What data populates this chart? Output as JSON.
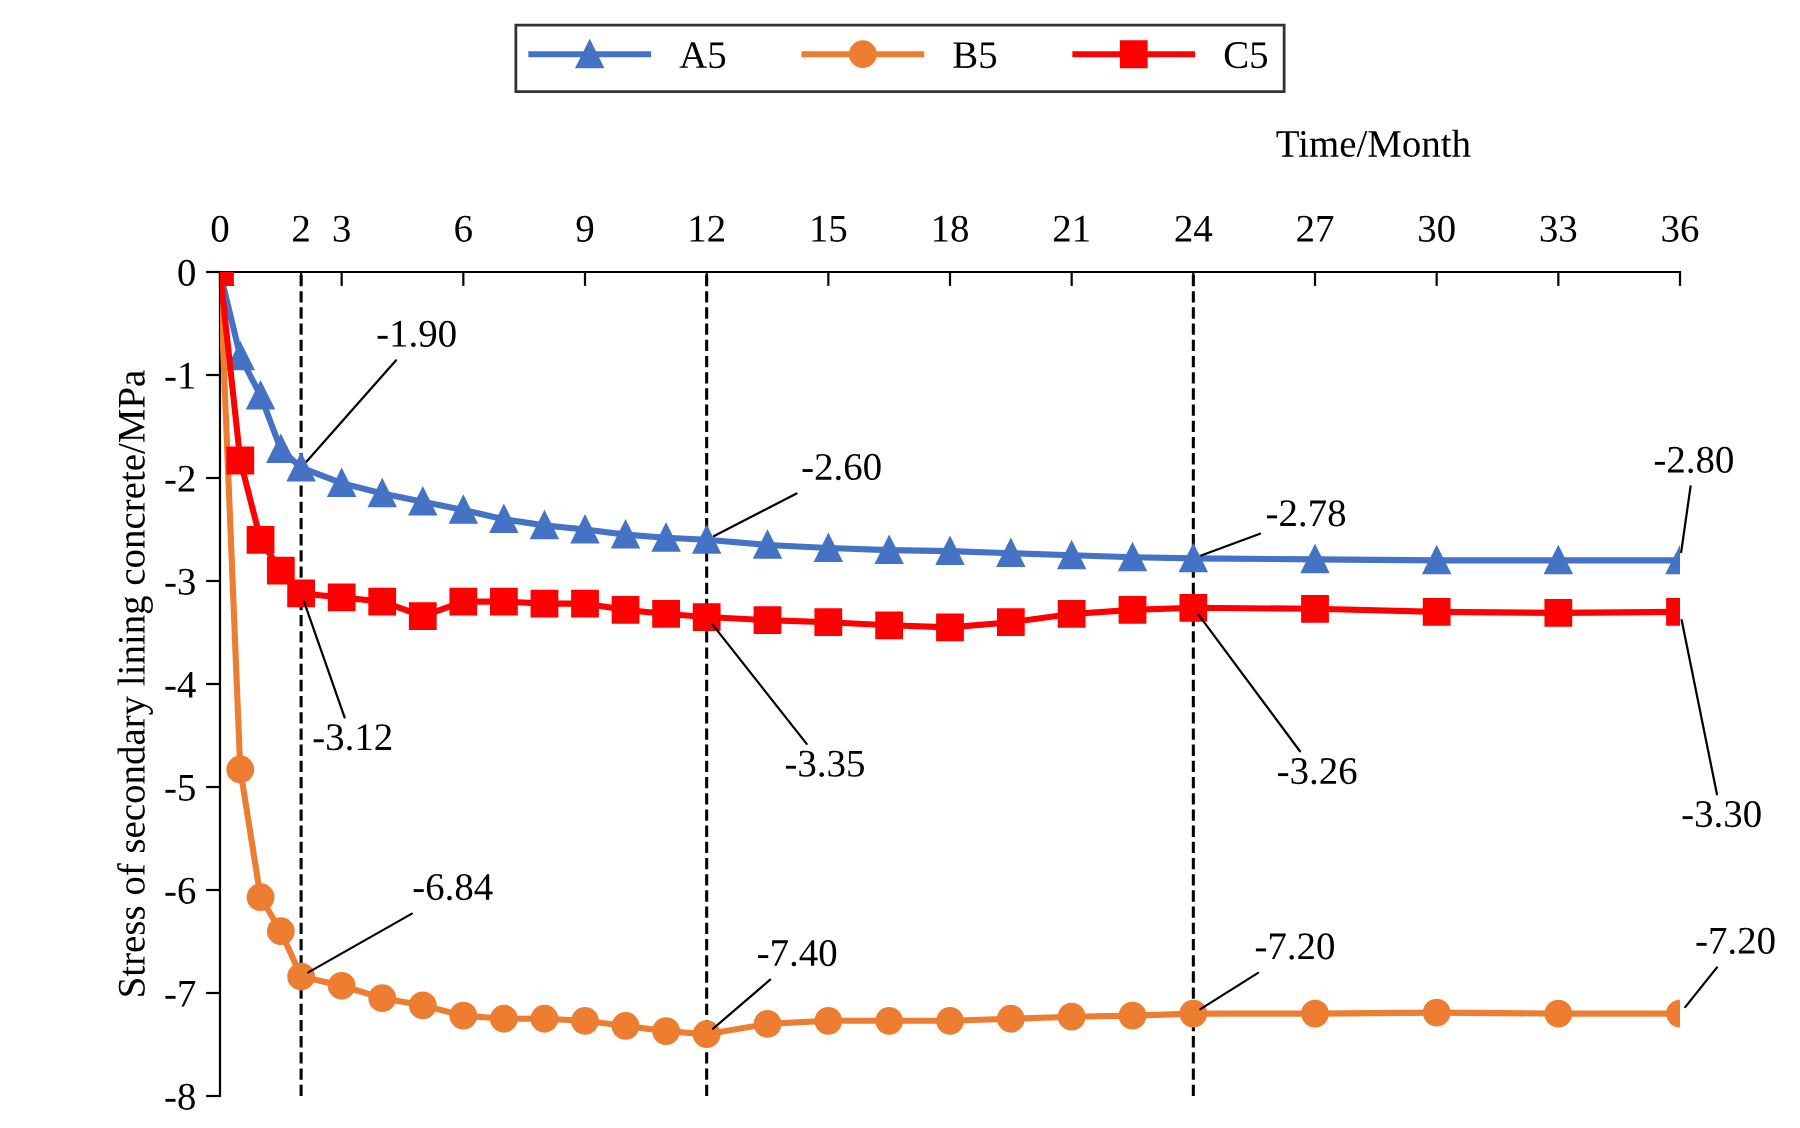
{
  "chart_data": {
    "type": "line",
    "xlabel": "Time/Month",
    "ylabel": "Stress of secondary lining concrete/MPa",
    "x": [
      0,
      0.5,
      1,
      1.5,
      2,
      3,
      4,
      5,
      6,
      7,
      8,
      9,
      10,
      11,
      12,
      13.5,
      15,
      16.5,
      18,
      19.5,
      21,
      22.5,
      24,
      27,
      30,
      33,
      36
    ],
    "series": [
      {
        "name": "A5",
        "color": "#4472c4",
        "marker": "triangle",
        "values": [
          0,
          -0.82,
          -1.2,
          -1.72,
          -1.9,
          -2.05,
          -2.15,
          -2.23,
          -2.31,
          -2.4,
          -2.46,
          -2.5,
          -2.55,
          -2.58,
          -2.6,
          -2.65,
          -2.68,
          -2.7,
          -2.71,
          -2.73,
          -2.75,
          -2.77,
          -2.78,
          -2.79,
          -2.8,
          -2.8,
          -2.8
        ]
      },
      {
        "name": "B5",
        "color": "#ed7d31",
        "marker": "circle",
        "values": [
          0,
          -4.83,
          -6.07,
          -6.4,
          -6.84,
          -6.93,
          -7.05,
          -7.12,
          -7.22,
          -7.25,
          -7.25,
          -7.27,
          -7.32,
          -7.37,
          -7.4,
          -7.3,
          -7.27,
          -7.27,
          -7.27,
          -7.25,
          -7.23,
          -7.22,
          -7.2,
          -7.2,
          -7.19,
          -7.2,
          -7.2
        ]
      },
      {
        "name": "C5",
        "color": "#ff0000",
        "marker": "square",
        "values": [
          0,
          -1.83,
          -2.6,
          -2.9,
          -3.12,
          -3.16,
          -3.2,
          -3.34,
          -3.2,
          -3.2,
          -3.22,
          -3.22,
          -3.28,
          -3.32,
          -3.35,
          -3.38,
          -3.4,
          -3.43,
          -3.45,
          -3.4,
          -3.32,
          -3.28,
          -3.26,
          -3.27,
          -3.3,
          -3.31,
          -3.3
        ]
      }
    ],
    "xlim": [
      0,
      36
    ],
    "xticks": [
      0,
      2,
      3,
      6,
      9,
      12,
      15,
      18,
      21,
      24,
      27,
      30,
      33,
      36
    ],
    "ylim": [
      -8,
      0
    ],
    "yticks": [
      0,
      -1,
      -2,
      -3,
      -4,
      -5,
      -6,
      -7,
      -8
    ],
    "grid": false,
    "legend": "top",
    "line_style": "solid",
    "ref_lines": [
      {
        "axis": "x",
        "value": 2,
        "color": "#000000",
        "line_style": "dashed"
      },
      {
        "axis": "x",
        "value": 12,
        "color": "#000000",
        "line_style": "dashed"
      },
      {
        "axis": "x",
        "value": 24,
        "color": "#000000",
        "line_style": "dashed"
      }
    ],
    "annotations": [
      {
        "text": "-1.90",
        "x": 2,
        "y": -1.9
      },
      {
        "text": "-2.60",
        "x": 12,
        "y": -2.6
      },
      {
        "text": "-2.78",
        "x": 24,
        "y": -2.78
      },
      {
        "text": "-2.80",
        "x": 36,
        "y": -2.8
      },
      {
        "text": "-3.12",
        "x": 2,
        "y": -3.12
      },
      {
        "text": "-3.35",
        "x": 12,
        "y": -3.35
      },
      {
        "text": "-3.26",
        "x": 24,
        "y": -3.26
      },
      {
        "text": "-3.30",
        "x": 36,
        "y": -3.3
      },
      {
        "text": "-6.84",
        "x": 2,
        "y": -6.84
      },
      {
        "text": "-7.40",
        "x": 12,
        "y": -7.4
      },
      {
        "text": "-7.20",
        "x": 24,
        "y": -7.2
      },
      {
        "text": "-7.20",
        "x": 36,
        "y": -7.2
      }
    ]
  }
}
